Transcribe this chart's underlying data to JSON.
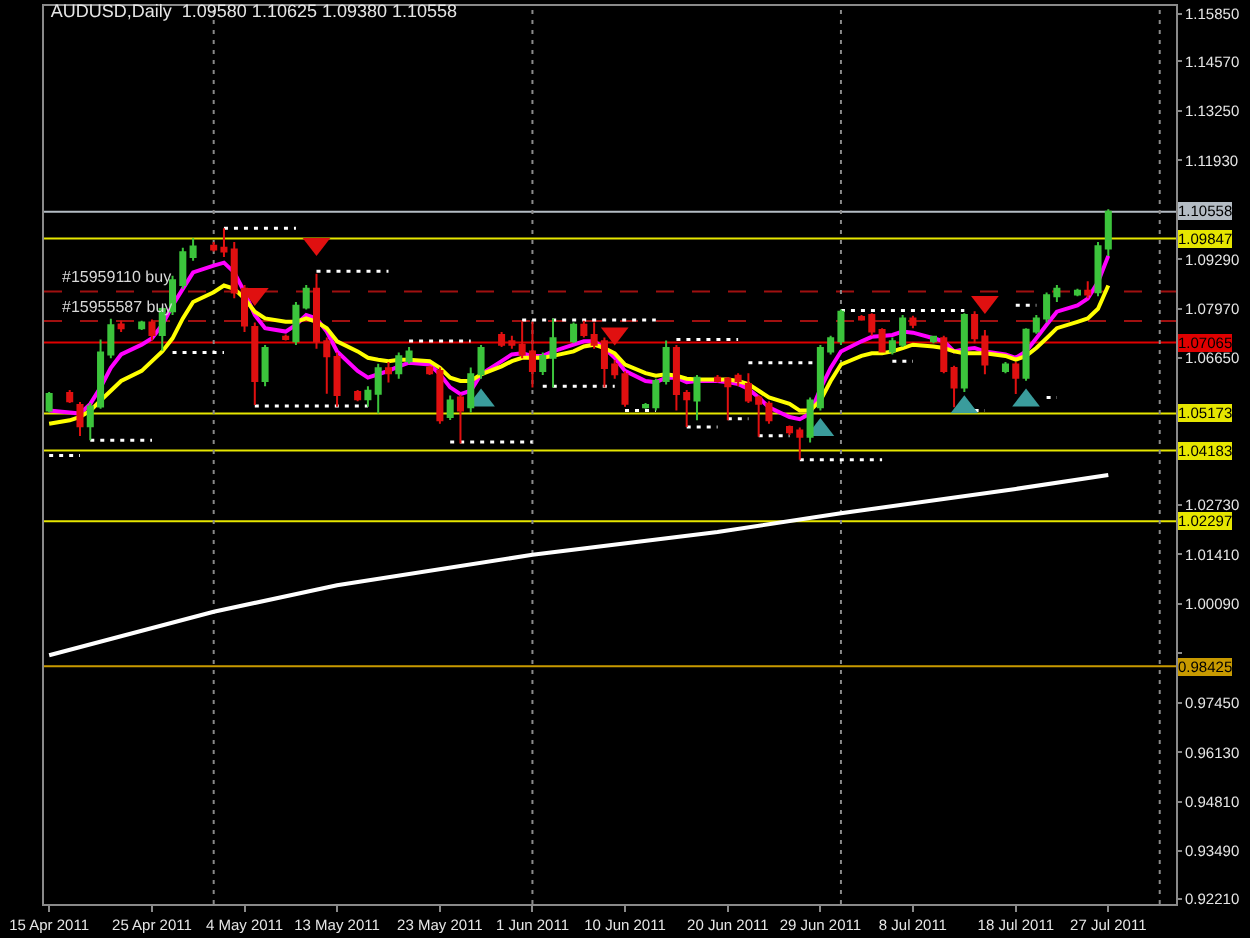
{
  "chart_data": {
    "type": "candlestick",
    "title": "AUDUSD,Daily  1.09580 1.10625 1.09380 1.10558",
    "x": [
      "2011-04-15",
      "2011-04-17",
      "2011-04-18",
      "2011-04-19",
      "2011-04-20",
      "2011-04-21",
      "2011-04-22",
      "2011-04-24",
      "2011-04-25",
      "2011-04-26",
      "2011-04-27",
      "2011-04-28",
      "2011-04-29",
      "2011-05-01",
      "2011-05-02",
      "2011-05-03",
      "2011-05-04",
      "2011-05-05",
      "2011-05-06",
      "2011-05-08",
      "2011-05-09",
      "2011-05-10",
      "2011-05-11",
      "2011-05-12",
      "2011-05-13",
      "2011-05-15",
      "2011-05-16",
      "2011-05-17",
      "2011-05-18",
      "2011-05-19",
      "2011-05-20",
      "2011-05-22",
      "2011-05-23",
      "2011-05-24",
      "2011-05-25",
      "2011-05-26",
      "2011-05-27",
      "2011-05-29",
      "2011-05-30",
      "2011-05-31",
      "2011-06-01",
      "2011-06-02",
      "2011-06-03",
      "2011-06-05",
      "2011-06-06",
      "2011-06-07",
      "2011-06-08",
      "2011-06-09",
      "2011-06-10",
      "2011-06-12",
      "2011-06-13",
      "2011-06-14",
      "2011-06-15",
      "2011-06-16",
      "2011-06-17",
      "2011-06-19",
      "2011-06-20",
      "2011-06-21",
      "2011-06-22",
      "2011-06-23",
      "2011-06-24",
      "2011-06-26",
      "2011-06-27",
      "2011-06-28",
      "2011-06-29",
      "2011-06-30",
      "2011-07-01",
      "2011-07-03",
      "2011-07-04",
      "2011-07-05",
      "2011-07-06",
      "2011-07-07",
      "2011-07-08",
      "2011-07-10",
      "2011-07-11",
      "2011-07-12",
      "2011-07-13",
      "2011-07-14",
      "2011-07-15",
      "2011-07-17",
      "2011-07-18",
      "2011-07-19",
      "2011-07-20",
      "2011-07-21",
      "2011-07-22",
      "2011-07-24",
      "2011-07-25",
      "2011-07-26",
      "2011-07-27"
    ],
    "ohlc": [
      [
        1.0525,
        1.0575,
        1.052,
        1.0569
      ],
      [
        1.0572,
        1.058,
        1.0545,
        1.055
      ],
      [
        1.054,
        1.0548,
        1.0457,
        1.0483
      ],
      [
        1.0483,
        1.0545,
        1.0446,
        1.0536
      ],
      [
        1.0536,
        1.0715,
        1.053,
        1.068
      ],
      [
        1.0675,
        1.077,
        1.0665,
        1.0753
      ],
      [
        1.0755,
        1.0765,
        1.0735,
        1.0745
      ],
      [
        1.0745,
        1.0765,
        1.074,
        1.076
      ],
      [
        1.076,
        1.0768,
        1.0712,
        1.0727
      ],
      [
        1.0727,
        1.08,
        1.0685,
        1.0796
      ],
      [
        1.079,
        1.0885,
        1.078,
        1.0873
      ],
      [
        1.086,
        1.096,
        1.085,
        1.0948
      ],
      [
        1.0935,
        1.0985,
        1.0925,
        1.0963
      ],
      [
        1.0965,
        1.0975,
        1.095,
        1.0955
      ],
      [
        1.096,
        1.1012,
        1.0935,
        1.095
      ],
      [
        1.0955,
        1.0975,
        1.0825,
        1.084
      ],
      [
        1.085,
        1.086,
        1.0735,
        1.0752
      ],
      [
        1.0748,
        1.076,
        1.054,
        1.0604
      ],
      [
        1.0604,
        1.07,
        1.059,
        1.0692
      ],
      [
        1.0722,
        1.0728,
        1.0712,
        1.0716
      ],
      [
        1.071,
        1.0815,
        1.07,
        1.0805
      ],
      [
        1.08,
        1.086,
        1.0795,
        1.085
      ],
      [
        1.085,
        1.089,
        1.069,
        1.071
      ],
      [
        1.071,
        1.072,
        1.057,
        1.067
      ],
      [
        1.0668,
        1.068,
        1.0535,
        1.0567
      ],
      [
        1.0575,
        1.058,
        1.055,
        1.0555
      ],
      [
        1.0555,
        1.059,
        1.0535,
        1.0578
      ],
      [
        1.057,
        1.065,
        1.0517,
        1.0638
      ],
      [
        1.0638,
        1.0655,
        1.06,
        1.0625
      ],
      [
        1.0625,
        1.068,
        1.061,
        1.067
      ],
      [
        1.0657,
        1.0695,
        1.065,
        1.0683
      ],
      [
        1.064,
        1.0645,
        1.062,
        1.0625
      ],
      [
        1.0631,
        1.064,
        1.049,
        1.0499
      ],
      [
        1.0508,
        1.0565,
        1.05,
        1.0552
      ],
      [
        1.056,
        1.0568,
        1.0437,
        1.0525
      ],
      [
        1.0534,
        1.064,
        1.052,
        1.0622
      ],
      [
        1.0622,
        1.07,
        1.061,
        1.0692
      ],
      [
        1.0727,
        1.0735,
        1.0695,
        1.0701
      ],
      [
        1.071,
        1.0725,
        1.069,
        1.0701
      ],
      [
        1.0701,
        1.0762,
        1.0665,
        1.0675
      ],
      [
        1.0683,
        1.0762,
        1.0587,
        1.0631
      ],
      [
        1.0631,
        1.068,
        1.062,
        1.0671
      ],
      [
        1.0666,
        1.0771,
        1.0587,
        1.0718
      ],
      [
        1.071,
        1.076,
        1.0705,
        1.0754
      ],
      [
        1.0754,
        1.0765,
        1.072,
        1.0727
      ],
      [
        1.0727,
        1.076,
        1.069,
        1.0701
      ],
      [
        1.071,
        1.072,
        1.0587,
        1.0639
      ],
      [
        1.0648,
        1.066,
        1.061,
        1.0622
      ],
      [
        1.0622,
        1.063,
        1.0535,
        1.0543
      ],
      [
        1.0534,
        1.0545,
        1.053,
        1.054
      ],
      [
        1.0534,
        1.061,
        1.0525,
        1.0604
      ],
      [
        1.0604,
        1.0712,
        1.0595,
        1.0692
      ],
      [
        1.0692,
        1.07,
        1.0525,
        1.0569
      ],
      [
        1.0572,
        1.058,
        1.0481,
        1.0555
      ],
      [
        1.0552,
        1.062,
        1.0499,
        1.0613
      ],
      [
        1.0613,
        1.062,
        1.06,
        1.0604
      ],
      [
        1.061,
        1.0615,
        1.0499,
        1.059
      ],
      [
        1.0618,
        1.0625,
        1.059,
        1.0604
      ],
      [
        1.0596,
        1.0625,
        1.0545,
        1.0552
      ],
      [
        1.056,
        1.0565,
        1.0455,
        1.0543
      ],
      [
        1.0543,
        1.055,
        1.049,
        1.0499
      ],
      [
        1.0481,
        1.0485,
        1.046,
        1.0467
      ],
      [
        1.0472,
        1.048,
        1.0394,
        1.0455
      ],
      [
        1.0455,
        1.056,
        1.044,
        1.0552
      ],
      [
        1.0534,
        1.07,
        1.0525,
        1.0692
      ],
      [
        1.0683,
        1.0725,
        1.0675,
        1.0718
      ],
      [
        1.071,
        1.0795,
        1.07,
        1.0789
      ],
      [
        1.0775,
        1.078,
        1.0765,
        1.0768
      ],
      [
        1.078,
        1.0785,
        1.0725,
        1.0736
      ],
      [
        1.074,
        1.0745,
        1.068,
        1.0683
      ],
      [
        1.0683,
        1.072,
        1.0675,
        1.071
      ],
      [
        1.0701,
        1.078,
        1.0695,
        1.0771
      ],
      [
        1.0771,
        1.0778,
        1.0745,
        1.0754
      ],
      [
        1.071,
        1.0725,
        1.0705,
        1.0722
      ],
      [
        1.0718,
        1.0725,
        1.0625,
        1.0631
      ],
      [
        1.0639,
        1.0645,
        1.0534,
        1.0587
      ],
      [
        1.0587,
        1.0785,
        1.0575,
        1.078
      ],
      [
        1.078,
        1.079,
        1.0705,
        1.0718
      ],
      [
        1.0723,
        1.074,
        1.0622,
        1.0648
      ],
      [
        1.0631,
        1.0655,
        1.0625,
        1.0648
      ],
      [
        1.0648,
        1.0655,
        1.0569,
        1.0613
      ],
      [
        1.0613,
        1.0745,
        1.0605,
        1.0741
      ],
      [
        1.0736,
        1.078,
        1.073,
        1.0771
      ],
      [
        1.0771,
        1.084,
        1.076,
        1.0833
      ],
      [
        1.083,
        1.086,
        1.0815,
        1.085
      ],
      [
        1.0835,
        1.085,
        1.083,
        1.0845
      ],
      [
        1.0845,
        1.087,
        1.0825,
        1.0835
      ],
      [
        1.0841,
        1.0975,
        1.083,
        1.0964
      ],
      [
        1.0958,
        1.10625,
        1.0938,
        1.10558
      ]
    ],
    "colors": [
      "#3cc43c",
      "#e01010",
      "#e01010",
      "#3cc43c",
      "#3cc43c",
      "#3cc43c",
      "#e01010",
      "#3cc43c",
      "#e01010",
      "#3cc43c",
      "#3cc43c",
      "#3cc43c",
      "#3cc43c",
      "#e01010",
      "#e01010",
      "#e01010",
      "#e01010",
      "#e01010",
      "#3cc43c",
      "#e01010",
      "#3cc43c",
      "#3cc43c",
      "#e01010",
      "#e01010",
      "#e01010",
      "#e01010",
      "#3cc43c",
      "#3cc43c",
      "#e01010",
      "#3cc43c",
      "#3cc43c",
      "#e01010",
      "#e01010",
      "#3cc43c",
      "#e01010",
      "#3cc43c",
      "#3cc43c",
      "#e01010",
      "#e01010",
      "#e01010",
      "#e01010",
      "#3cc43c",
      "#3cc43c",
      "#3cc43c",
      "#e01010",
      "#e01010",
      "#e01010",
      "#e01010",
      "#e01010",
      "#3cc43c",
      "#3cc43c",
      "#3cc43c",
      "#e01010",
      "#e01010",
      "#3cc43c",
      "#e01010",
      "#e01010",
      "#e01010",
      "#e01010",
      "#e01010",
      "#e01010",
      "#e01010",
      "#e01010",
      "#3cc43c",
      "#3cc43c",
      "#3cc43c",
      "#3cc43c",
      "#e01010",
      "#e01010",
      "#e01010",
      "#3cc43c",
      "#3cc43c",
      "#e01010",
      "#3cc43c",
      "#e01010",
      "#e01010",
      "#3cc43c",
      "#e01010",
      "#e01010",
      "#3cc43c",
      "#e01010",
      "#3cc43c",
      "#3cc43c",
      "#3cc43c",
      "#3cc43c",
      "#3cc43c",
      "#e01010",
      "#3cc43c",
      "#3cc43c"
    ],
    "series": [
      {
        "type": "line",
        "color": "#ff00ff",
        "values": [
          1.0525,
          1.052,
          1.0517,
          1.0543,
          1.0587,
          1.0639,
          1.0675,
          1.0701,
          1.0718,
          1.0754,
          1.0806,
          1.085,
          1.0894,
          1.0912,
          1.092,
          1.0894,
          1.0841,
          1.078,
          1.0745,
          1.0736,
          1.0754,
          1.078,
          1.0771,
          1.0736,
          1.0683,
          1.0631,
          1.0613,
          1.0622,
          1.0631,
          1.0643,
          1.0653,
          1.0648,
          1.0622,
          1.0587,
          1.0569,
          1.0578,
          1.0622,
          1.0657,
          1.0675,
          1.0678,
          1.0671,
          1.0671,
          1.0683,
          1.0701,
          1.071,
          1.071,
          1.0692,
          1.0666,
          1.0631,
          1.0604,
          1.0601,
          1.0613,
          1.0613,
          1.0601,
          1.0604,
          1.0604,
          1.0601,
          1.0596,
          1.0583,
          1.056,
          1.0534,
          1.0508,
          1.0502,
          1.0517,
          1.0583,
          1.0639,
          1.0683,
          1.071,
          1.0722,
          1.0724,
          1.0727,
          1.0736,
          1.0733,
          1.0718,
          1.071,
          1.0683,
          1.0689,
          1.0692,
          1.0683,
          1.0675,
          1.0666,
          1.0683,
          1.0718,
          1.0754,
          1.0789,
          1.0806,
          1.0824,
          1.0868,
          1.0938
        ]
      },
      {
        "type": "line",
        "color": "#ffff00",
        "values": [
          1.049,
          1.0499,
          1.0508,
          1.0525,
          1.0552,
          1.0578,
          1.0604,
          1.0631,
          1.0657,
          1.0683,
          1.0718,
          1.0771,
          1.0815,
          1.0841,
          1.0859,
          1.085,
          1.0824,
          1.0789,
          1.0771,
          1.0762,
          1.0762,
          1.0771,
          1.0762,
          1.0745,
          1.071,
          1.0683,
          1.0666,
          1.0661,
          1.0657,
          1.0661,
          1.0661,
          1.0657,
          1.0639,
          1.0613,
          1.0604,
          1.0604,
          1.0622,
          1.0643,
          1.0657,
          1.0666,
          1.0666,
          1.0666,
          1.0671,
          1.0683,
          1.0696,
          1.0701,
          1.0692,
          1.0678,
          1.0648,
          1.0625,
          1.0618,
          1.0622,
          1.0618,
          1.061,
          1.0608,
          1.0608,
          1.0608,
          1.0604,
          1.0596,
          1.0578,
          1.056,
          1.0543,
          1.0525,
          1.0525,
          1.0552,
          1.0604,
          1.0648,
          1.0671,
          1.0678,
          1.0678,
          1.0683,
          1.0692,
          1.0701,
          1.0696,
          1.0692,
          1.0683,
          1.0678,
          1.0678,
          1.0678,
          1.0671,
          1.0661,
          1.0671,
          1.0692,
          1.0718,
          1.0745,
          1.0762,
          1.0771,
          1.0797,
          1.0859
        ]
      },
      {
        "type": "line",
        "color": "#ffffff",
        "x": [
          "2011-04-15",
          "2011-05-01",
          "2011-05-13",
          "2011-06-01",
          "2011-06-19",
          "2011-07-01",
          "2011-07-18",
          "2011-07-27"
        ],
        "values": [
          0.9872,
          0.9988,
          1.0059,
          1.014,
          1.0201,
          1.0251,
          1.0316,
          1.0353
        ]
      },
      {
        "type": "line",
        "color": "#ffffff",
        "line_style": "dotted",
        "x": [
          "2011-04-15",
          "2011-04-18",
          null,
          "2011-04-19",
          "2011-04-25",
          null,
          "2011-04-27",
          "2011-05-02",
          null,
          "2011-05-02",
          "2011-05-09",
          null,
          "2011-05-05",
          "2011-05-16",
          null,
          "2011-05-11",
          "2011-05-18",
          null,
          "2011-05-20",
          "2011-05-26",
          null,
          "2011-05-24",
          "2011-06-01",
          null,
          "2011-05-31",
          "2011-06-13",
          null,
          "2011-06-02",
          "2011-06-09",
          null,
          "2011-06-10",
          "2011-06-13",
          null,
          "2011-06-15",
          "2011-06-21",
          null,
          "2011-06-16",
          "2011-06-19",
          null,
          "2011-06-20",
          "2011-06-22",
          null,
          "2011-06-22",
          "2011-06-29",
          null,
          "2011-06-23",
          "2011-06-26",
          null,
          "2011-06-27",
          "2011-07-05",
          null,
          "2011-07-01",
          "2011-07-13",
          null,
          "2011-07-06",
          "2011-07-08",
          null,
          "2011-07-14",
          "2011-07-15",
          null,
          "2011-07-18",
          "2011-07-20",
          null,
          "2011-07-21",
          "2011-07-22"
        ],
        "values": [
          1.0405,
          1.0405,
          null,
          1.0446,
          1.0446,
          null,
          1.068,
          1.068,
          null,
          1.1012,
          1.1012,
          null,
          1.0537,
          1.0537,
          null,
          1.0897,
          1.0897,
          null,
          1.0711,
          1.0711,
          null,
          1.0441,
          1.0441,
          null,
          1.0767,
          1.0767,
          null,
          1.059,
          1.059,
          null,
          1.0525,
          1.0525,
          null,
          1.0715,
          1.0715,
          null,
          1.0481,
          1.0481,
          null,
          1.0503,
          1.0503,
          null,
          1.0653,
          1.0653,
          null,
          1.0458,
          1.0458,
          null,
          1.0394,
          1.0394,
          null,
          1.0792,
          1.0792,
          null,
          1.0657,
          1.0657,
          null,
          1.0525,
          1.0525,
          null,
          1.0806,
          1.0806,
          null,
          1.056,
          1.056
        ]
      },
      {
        "type": "scatter",
        "color": "#e01010",
        "marker": "triangle",
        "x": [
          "2011-05-05",
          "2011-05-11",
          "2011-06-09",
          "2011-07-15"
        ],
        "values": [
          1.0836,
          1.097,
          1.0731,
          1.0815
        ]
      },
      {
        "type": "scatter",
        "color": "#3a9c9c",
        "marker": "triangle",
        "x": [
          "2011-05-27",
          "2011-06-29",
          "2011-07-13",
          "2011-07-19"
        ],
        "values": [
          1.0552,
          1.0473,
          1.0534,
          1.0552
        ]
      }
    ],
    "xlim": [
      "2011-04-14T12:00",
      "2011-08-02T14:00"
    ],
    "xticks": [
      {
        "value": "2011-04-15",
        "label": "15 Apr 2011"
      },
      {
        "value": "2011-04-25",
        "label": "25 Apr 2011"
      },
      {
        "value": "2011-05-04",
        "label": "4 May 2011"
      },
      {
        "value": "2011-05-13",
        "label": "13 May 2011"
      },
      {
        "value": "2011-05-23",
        "label": "23 May 2011"
      },
      {
        "value": "2011-06-01",
        "label": "1 Jun 2011"
      },
      {
        "value": "2011-06-10",
        "label": "10 Jun 2011"
      },
      {
        "value": "2011-06-20",
        "label": "20 Jun 2011"
      },
      {
        "value": "2011-06-29",
        "label": "29 Jun 2011"
      },
      {
        "value": "2011-07-08",
        "label": "8 Jul 2011"
      },
      {
        "value": "2011-07-18",
        "label": "18 Jul 2011"
      },
      {
        "value": "2011-07-27",
        "label": "27 Jul 2011"
      }
    ],
    "ylim": [
      0.9208,
      1.1605
    ],
    "yticks": [
      {
        "value": 1.1585,
        "label": "1.15850"
      },
      {
        "value": 1.1457,
        "label": "1.14570"
      },
      {
        "value": 1.1325,
        "label": "1.13250"
      },
      {
        "value": 1.1193,
        "label": "1.11930"
      },
      {
        "value": 1.0929,
        "label": "1.09290"
      },
      {
        "value": 1.0797,
        "label": "1.07970"
      },
      {
        "value": 1.0665,
        "label": "1.06650"
      },
      {
        "value": 1.0273,
        "label": "1.02730"
      },
      {
        "value": 1.0141,
        "label": "1.01410"
      },
      {
        "value": 1.0009,
        "label": "1.00090"
      },
      {
        "value": 0.9877,
        "label": null
      },
      {
        "value": 0.9745,
        "label": "0.97450"
      },
      {
        "value": 0.9613,
        "label": "0.96130"
      },
      {
        "value": 0.9481,
        "label": "0.94810"
      },
      {
        "value": 0.9349,
        "label": "0.93490"
      },
      {
        "value": 0.9221,
        "label": "0.92210"
      }
    ],
    "ref_lines": [
      {
        "axis": "y",
        "value": 1.10558,
        "label": "1.10558",
        "color": "#b4bcc4"
      },
      {
        "axis": "y",
        "value": 1.09847,
        "label": "1.09847",
        "color": "#e6e600"
      },
      {
        "axis": "y",
        "value": 1.0843,
        "label": "#15959110 buy",
        "color": "#a01010",
        "line_style": "dashed"
      },
      {
        "axis": "y",
        "value": 1.0764,
        "label": "#15955587 buy",
        "color": "#a01010",
        "line_style": "dashed"
      },
      {
        "axis": "y",
        "value": 1.07065,
        "label": "1.07065",
        "color": "#e00000"
      },
      {
        "axis": "y",
        "value": 1.05173,
        "label": "1.05173",
        "color": "#e6e600"
      },
      {
        "axis": "y",
        "value": 1.04183,
        "label": "1.04183",
        "color": "#e6e600"
      },
      {
        "axis": "y",
        "value": 1.02297,
        "label": "1.02297",
        "color": "#e6e600"
      },
      {
        "axis": "y",
        "value": 0.98425,
        "label": "0.98425",
        "color": "#c89a00"
      },
      {
        "axis": "x",
        "value": "2011-05-01",
        "color": "#8a8a8a",
        "line_style": "dotted"
      },
      {
        "axis": "x",
        "value": "2011-06-01",
        "color": "#8a8a8a",
        "line_style": "dotted"
      },
      {
        "axis": "x",
        "value": "2011-07-01",
        "color": "#8a8a8a",
        "line_style": "dotted"
      },
      {
        "axis": "x",
        "value": "2011-08-01",
        "color": "#8a8a8a",
        "line_style": "dotted"
      }
    ]
  }
}
